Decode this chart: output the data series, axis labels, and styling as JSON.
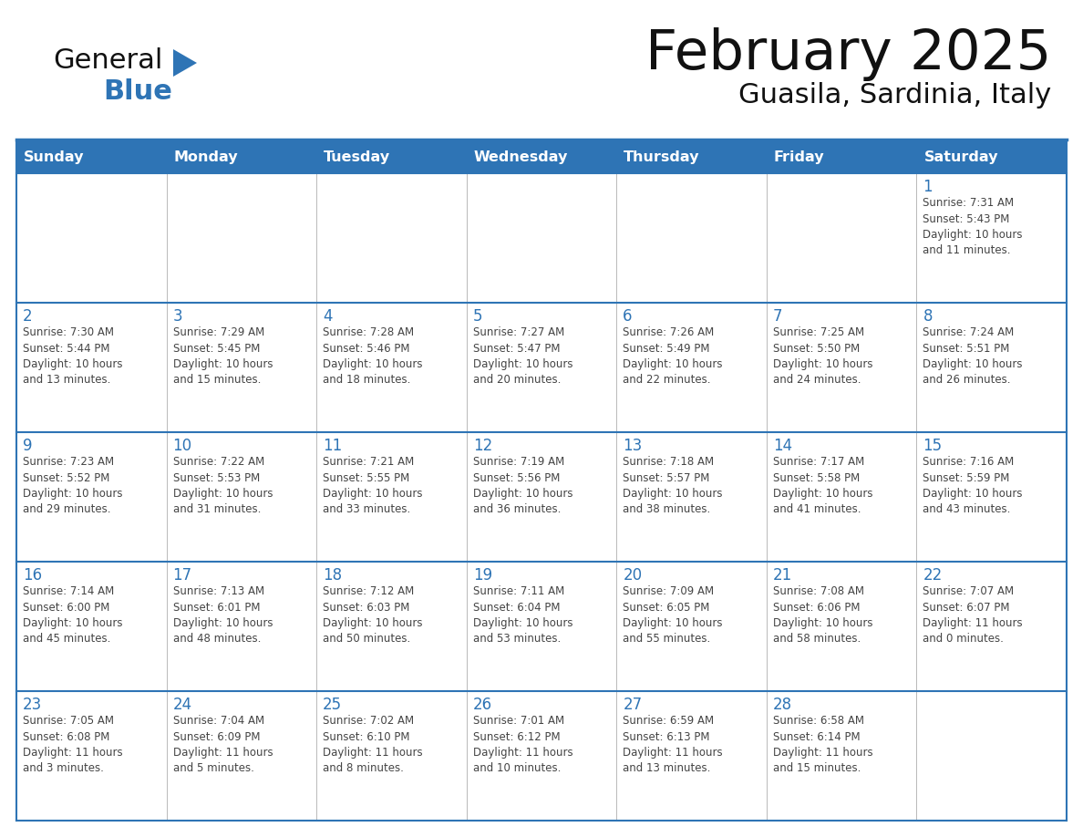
{
  "title": "February 2025",
  "subtitle": "Guasila, Sardinia, Italy",
  "header_bg": "#2E74B5",
  "header_text_color": "#FFFFFF",
  "border_color": "#2E74B5",
  "border_color_light": "#3A7FC1",
  "grid_color": "#C0C0C0",
  "text_color": "#333333",
  "day_number_color": "#2E74B5",
  "info_text_color": "#444444",
  "days_of_week": [
    "Sunday",
    "Monday",
    "Tuesday",
    "Wednesday",
    "Thursday",
    "Friday",
    "Saturday"
  ],
  "weeks": [
    [
      {
        "day": "",
        "info": ""
      },
      {
        "day": "",
        "info": ""
      },
      {
        "day": "",
        "info": ""
      },
      {
        "day": "",
        "info": ""
      },
      {
        "day": "",
        "info": ""
      },
      {
        "day": "",
        "info": ""
      },
      {
        "day": "1",
        "info": "Sunrise: 7:31 AM\nSunset: 5:43 PM\nDaylight: 10 hours\nand 11 minutes."
      }
    ],
    [
      {
        "day": "2",
        "info": "Sunrise: 7:30 AM\nSunset: 5:44 PM\nDaylight: 10 hours\nand 13 minutes."
      },
      {
        "day": "3",
        "info": "Sunrise: 7:29 AM\nSunset: 5:45 PM\nDaylight: 10 hours\nand 15 minutes."
      },
      {
        "day": "4",
        "info": "Sunrise: 7:28 AM\nSunset: 5:46 PM\nDaylight: 10 hours\nand 18 minutes."
      },
      {
        "day": "5",
        "info": "Sunrise: 7:27 AM\nSunset: 5:47 PM\nDaylight: 10 hours\nand 20 minutes."
      },
      {
        "day": "6",
        "info": "Sunrise: 7:26 AM\nSunset: 5:49 PM\nDaylight: 10 hours\nand 22 minutes."
      },
      {
        "day": "7",
        "info": "Sunrise: 7:25 AM\nSunset: 5:50 PM\nDaylight: 10 hours\nand 24 minutes."
      },
      {
        "day": "8",
        "info": "Sunrise: 7:24 AM\nSunset: 5:51 PM\nDaylight: 10 hours\nand 26 minutes."
      }
    ],
    [
      {
        "day": "9",
        "info": "Sunrise: 7:23 AM\nSunset: 5:52 PM\nDaylight: 10 hours\nand 29 minutes."
      },
      {
        "day": "10",
        "info": "Sunrise: 7:22 AM\nSunset: 5:53 PM\nDaylight: 10 hours\nand 31 minutes."
      },
      {
        "day": "11",
        "info": "Sunrise: 7:21 AM\nSunset: 5:55 PM\nDaylight: 10 hours\nand 33 minutes."
      },
      {
        "day": "12",
        "info": "Sunrise: 7:19 AM\nSunset: 5:56 PM\nDaylight: 10 hours\nand 36 minutes."
      },
      {
        "day": "13",
        "info": "Sunrise: 7:18 AM\nSunset: 5:57 PM\nDaylight: 10 hours\nand 38 minutes."
      },
      {
        "day": "14",
        "info": "Sunrise: 7:17 AM\nSunset: 5:58 PM\nDaylight: 10 hours\nand 41 minutes."
      },
      {
        "day": "15",
        "info": "Sunrise: 7:16 AM\nSunset: 5:59 PM\nDaylight: 10 hours\nand 43 minutes."
      }
    ],
    [
      {
        "day": "16",
        "info": "Sunrise: 7:14 AM\nSunset: 6:00 PM\nDaylight: 10 hours\nand 45 minutes."
      },
      {
        "day": "17",
        "info": "Sunrise: 7:13 AM\nSunset: 6:01 PM\nDaylight: 10 hours\nand 48 minutes."
      },
      {
        "day": "18",
        "info": "Sunrise: 7:12 AM\nSunset: 6:03 PM\nDaylight: 10 hours\nand 50 minutes."
      },
      {
        "day": "19",
        "info": "Sunrise: 7:11 AM\nSunset: 6:04 PM\nDaylight: 10 hours\nand 53 minutes."
      },
      {
        "day": "20",
        "info": "Sunrise: 7:09 AM\nSunset: 6:05 PM\nDaylight: 10 hours\nand 55 minutes."
      },
      {
        "day": "21",
        "info": "Sunrise: 7:08 AM\nSunset: 6:06 PM\nDaylight: 10 hours\nand 58 minutes."
      },
      {
        "day": "22",
        "info": "Sunrise: 7:07 AM\nSunset: 6:07 PM\nDaylight: 11 hours\nand 0 minutes."
      }
    ],
    [
      {
        "day": "23",
        "info": "Sunrise: 7:05 AM\nSunset: 6:08 PM\nDaylight: 11 hours\nand 3 minutes."
      },
      {
        "day": "24",
        "info": "Sunrise: 7:04 AM\nSunset: 6:09 PM\nDaylight: 11 hours\nand 5 minutes."
      },
      {
        "day": "25",
        "info": "Sunrise: 7:02 AM\nSunset: 6:10 PM\nDaylight: 11 hours\nand 8 minutes."
      },
      {
        "day": "26",
        "info": "Sunrise: 7:01 AM\nSunset: 6:12 PM\nDaylight: 11 hours\nand 10 minutes."
      },
      {
        "day": "27",
        "info": "Sunrise: 6:59 AM\nSunset: 6:13 PM\nDaylight: 11 hours\nand 13 minutes."
      },
      {
        "day": "28",
        "info": "Sunrise: 6:58 AM\nSunset: 6:14 PM\nDaylight: 11 hours\nand 15 minutes."
      },
      {
        "day": "",
        "info": ""
      }
    ]
  ],
  "logo_color_general": "#111111",
  "logo_color_blue": "#2E74B5",
  "logo_triangle_color": "#2E74B5"
}
